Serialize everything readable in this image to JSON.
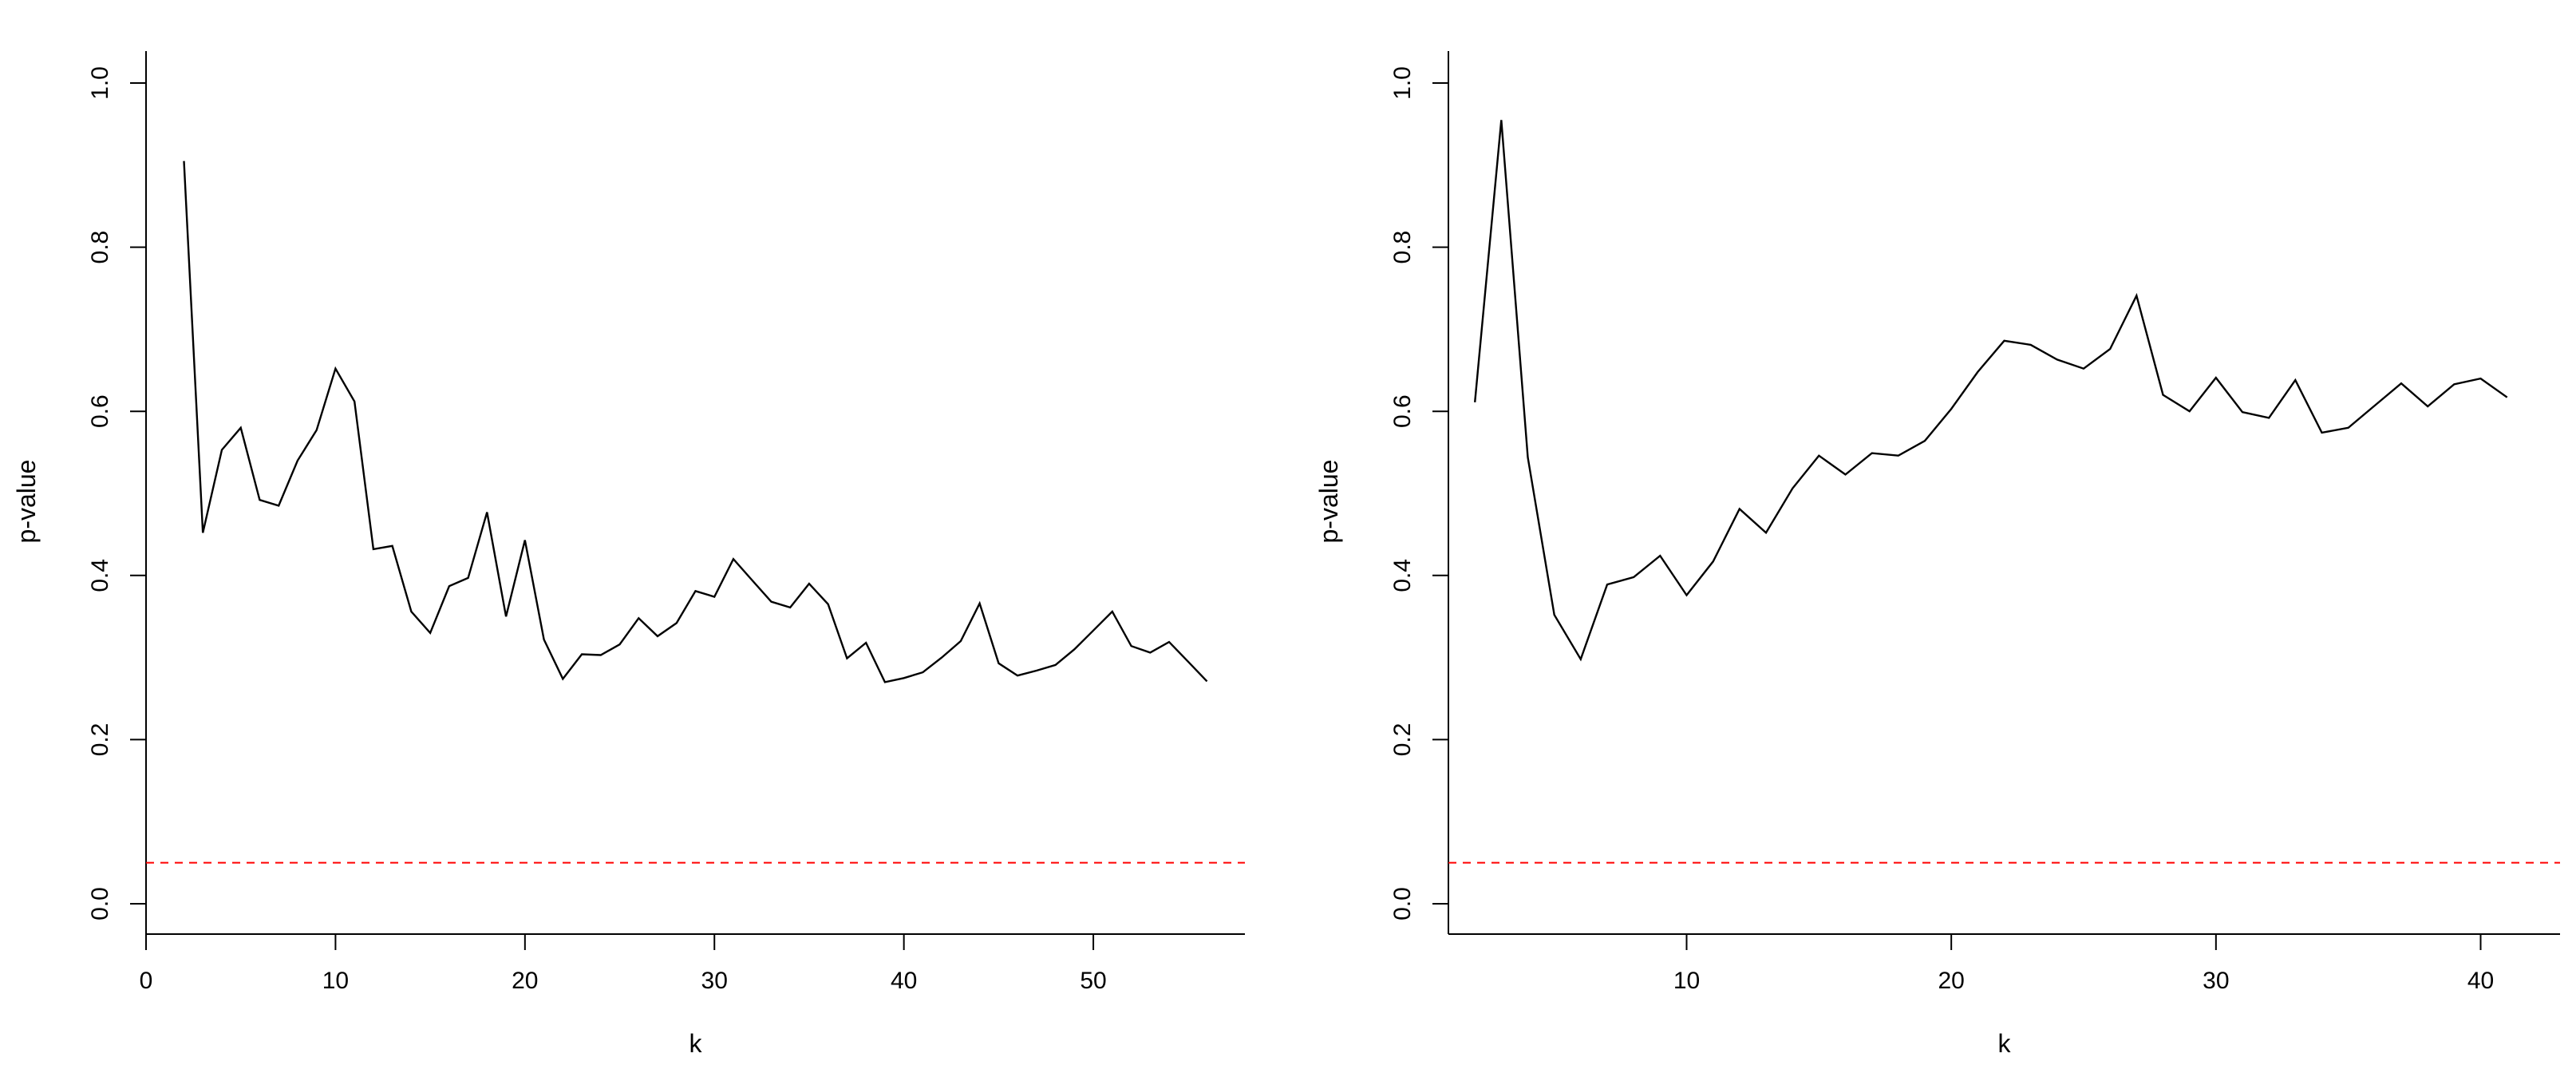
{
  "chart_data": [
    {
      "type": "line",
      "xlabel": "k",
      "ylabel": "p-value",
      "xlim": [
        0,
        58
      ],
      "ylim": [
        0,
        1
      ],
      "x_ticks": [
        0,
        10,
        20,
        30,
        40,
        50
      ],
      "y_ticks": [
        0.0,
        0.2,
        0.4,
        0.6,
        0.8,
        1.0
      ],
      "x_tick_labels": [
        "0",
        "10",
        "20",
        "30",
        "40",
        "50"
      ],
      "y_tick_labels": [
        "0.0",
        "0.2",
        "0.4",
        "0.6",
        "0.8",
        "1.0"
      ],
      "reference_line": {
        "y": 0.05,
        "color": "#ff0000",
        "style": "dashed"
      },
      "series": [
        {
          "color": "#000000",
          "x": [
            2,
            3,
            4,
            5,
            6,
            7,
            8,
            9,
            10,
            11,
            12,
            13,
            14,
            15,
            16,
            17,
            18,
            19,
            20,
            21,
            22,
            23,
            24,
            25,
            26,
            27,
            28,
            29,
            30,
            31,
            32,
            33,
            34,
            35,
            36,
            37,
            38,
            39,
            40,
            41,
            42,
            43,
            44,
            45,
            46,
            47,
            48,
            49,
            50,
            51,
            52,
            53,
            54,
            55,
            56
          ],
          "y": [
            0.905,
            0.452,
            0.553,
            0.58,
            0.492,
            0.485,
            0.54,
            0.577,
            0.652,
            0.612,
            0.432,
            0.436,
            0.356,
            0.33,
            0.387,
            0.397,
            0.477,
            0.35,
            0.443,
            0.322,
            0.274,
            0.304,
            0.303,
            0.316,
            0.348,
            0.326,
            0.342,
            0.381,
            0.374,
            0.42,
            0.394,
            0.368,
            0.361,
            0.39,
            0.365,
            0.299,
            0.318,
            0.27,
            0.275,
            0.282,
            0.3,
            0.32,
            0.366,
            0.293,
            0.278,
            0.284,
            0.291,
            0.31,
            0.333,
            0.356,
            0.314,
            0.306,
            0.319,
            0.295,
            0.271
          ]
        }
      ]
    },
    {
      "type": "line",
      "xlabel": "k",
      "ylabel": "p-value",
      "xlim": [
        1,
        43
      ],
      "ylim": [
        0,
        1
      ],
      "x_ticks": [
        10,
        20,
        30,
        40
      ],
      "y_ticks": [
        0.0,
        0.2,
        0.4,
        0.6,
        0.8,
        1.0
      ],
      "x_tick_labels": [
        "10",
        "20",
        "30",
        "40"
      ],
      "y_tick_labels": [
        "0.0",
        "0.2",
        "0.4",
        "0.6",
        "0.8",
        "1.0"
      ],
      "reference_line": {
        "y": 0.05,
        "color": "#ff0000",
        "style": "dashed"
      },
      "series": [
        {
          "color": "#000000",
          "x": [
            2,
            3,
            4,
            5,
            6,
            7,
            8,
            9,
            10,
            11,
            12,
            13,
            14,
            15,
            16,
            17,
            18,
            19,
            20,
            21,
            22,
            23,
            24,
            25,
            26,
            27,
            28,
            29,
            30,
            31,
            32,
            33,
            34,
            35,
            36,
            37,
            38,
            39,
            40,
            41
          ],
          "y": [
            0.611,
            0.955,
            0.544,
            0.352,
            0.298,
            0.389,
            0.398,
            0.424,
            0.376,
            0.417,
            0.481,
            0.452,
            0.506,
            0.546,
            0.523,
            0.549,
            0.546,
            0.564,
            0.603,
            0.648,
            0.686,
            0.681,
            0.663,
            0.652,
            0.676,
            0.741,
            0.62,
            0.6,
            0.641,
            0.599,
            0.592,
            0.638,
            0.574,
            0.58,
            0.607,
            0.634,
            0.606,
            0.633,
            0.64,
            0.617
          ]
        }
      ]
    }
  ]
}
